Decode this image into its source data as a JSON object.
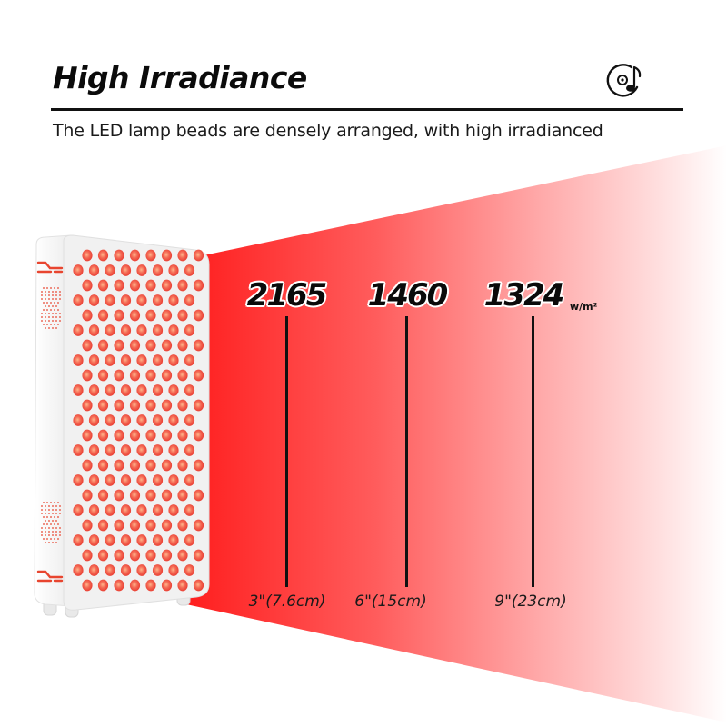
{
  "header": {
    "title": "High Irradiance",
    "subtitle": "The LED lamp beads are densely arranged, with high irradianced",
    "icon": "music-disc-icon"
  },
  "colors": {
    "beam_start": "#ff2222",
    "beam_end": "#ffffff",
    "led": "#f4473f",
    "device_body": "#f2f2f2",
    "text": "#111111"
  },
  "device": {
    "name": "LED red light therapy panel",
    "side_accent_icon": "wave-line-icon"
  },
  "measurements": {
    "unit": "w/m²",
    "items": [
      {
        "value": "2165",
        "distance": "3\"(7.6cm)"
      },
      {
        "value": "1460",
        "distance": "6\"(15cm)"
      },
      {
        "value": "1324",
        "distance": "9\"(23cm)"
      }
    ]
  }
}
